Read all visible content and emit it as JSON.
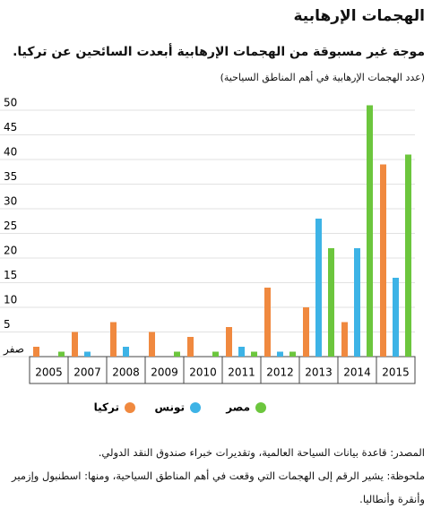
{
  "chart_data": {
    "type": "bar",
    "title": "الهجمات الإرهابية",
    "subtitle": "موجة غير مسبوقة من الهجمات الإرهابية أبعدت السائحين عن تركيا.",
    "y_label": "(عدد الهجمات الإرهابية في أهم المناطق السياحية)",
    "categories": [
      "2005",
      "2007",
      "2008",
      "2009",
      "2010",
      "2011",
      "2012",
      "2013",
      "2014",
      "2015"
    ],
    "series": [
      {
        "name": "تركيا",
        "color": "#f0893f",
        "values": [
          2,
          5,
          7,
          5,
          4,
          6,
          14,
          10,
          7,
          39
        ]
      },
      {
        "name": "تونس",
        "color": "#3db3e6",
        "values": [
          0,
          1,
          2,
          0,
          0,
          2,
          1,
          28,
          22,
          16
        ]
      },
      {
        "name": "مصر",
        "color": "#6cc63d",
        "values": [
          1,
          0,
          0,
          1,
          1,
          1,
          1,
          22,
          51,
          41
        ]
      }
    ],
    "ylim": [
      0,
      52
    ],
    "yticks": [
      {
        "value": 0,
        "label": "صفر"
      },
      5,
      10,
      15,
      20,
      25,
      30,
      35,
      40,
      45,
      50
    ],
    "grid": true,
    "notes": [
      "المصدر: قاعدة بيانات السياحة العالمية، وتقديرات خبراء صندوق النقد الدولي.",
      "ملحوظة: يشير الرقم إلى الهجمات التي وقعت في أهم المناطق السياحية، ومنها: اسطنبول وإزمير وأنقرة وأنطاليا."
    ]
  }
}
